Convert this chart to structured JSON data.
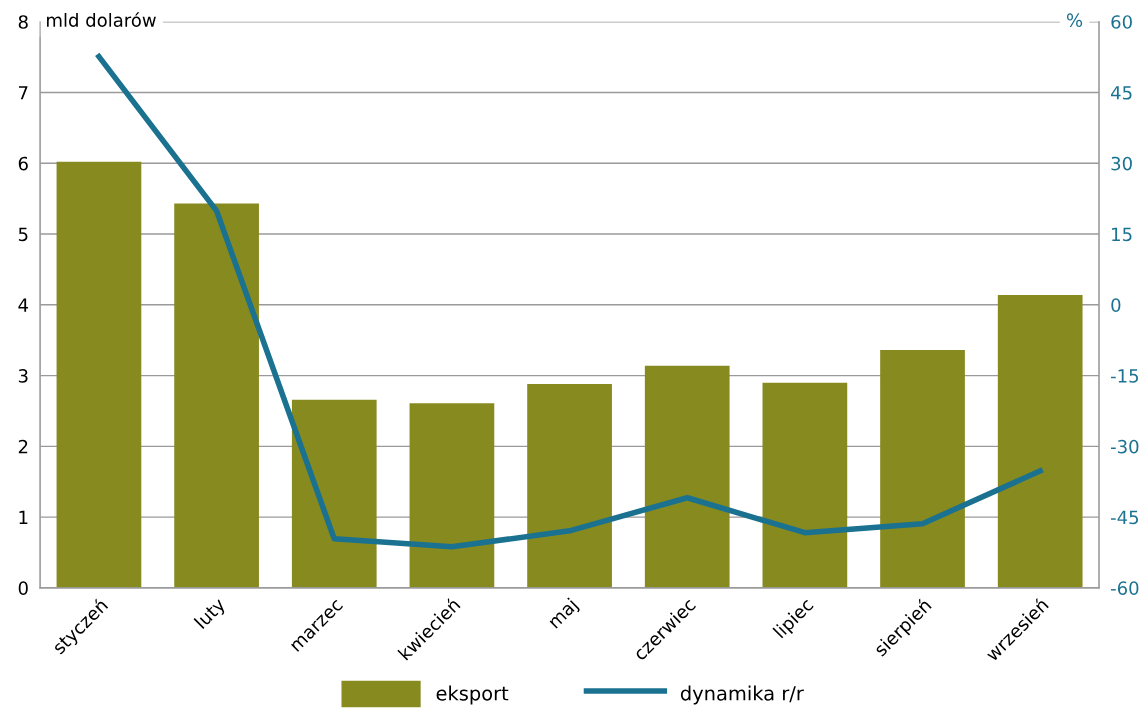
{
  "chart_data": {
    "type": "bar",
    "ylabel": "mld dolarów",
    "y2label": "%",
    "categories": [
      "styczeń",
      "luty",
      "marzec",
      "kwiecień",
      "maj",
      "czerwiec",
      "lipiec",
      "sierpień",
      "wrzesień"
    ],
    "series": [
      {
        "name": "eksport",
        "color": "#878a1e",
        "values": [
          6.02,
          5.43,
          2.66,
          2.61,
          2.88,
          3.14,
          2.9,
          3.36,
          4.14
        ]
      },
      {
        "name": "dynamika r/r",
        "type": "line",
        "axis": "y2",
        "color": "#1a7290",
        "values": [
          52.6,
          19.9,
          -49.6,
          -51.3,
          -47.9,
          -40.9,
          -48.3,
          -46.4,
          -35.2
        ]
      }
    ],
    "ylim": [
      0,
      8
    ],
    "yticks": [
      0,
      1,
      2,
      3,
      4,
      5,
      6,
      7,
      8
    ],
    "y2lim": [
      -60,
      60
    ],
    "y2ticks": [
      {
        "value": -60,
        "label": "-60"
      },
      {
        "value": -45,
        "label": "-45"
      },
      {
        "value": -30,
        "label": "-30"
      },
      {
        "value": -15,
        "label": "-15"
      },
      0,
      15,
      30,
      45,
      60
    ],
    "grid": "y",
    "legend": "bottom",
    "line_style": "solid",
    "marker": "none"
  }
}
